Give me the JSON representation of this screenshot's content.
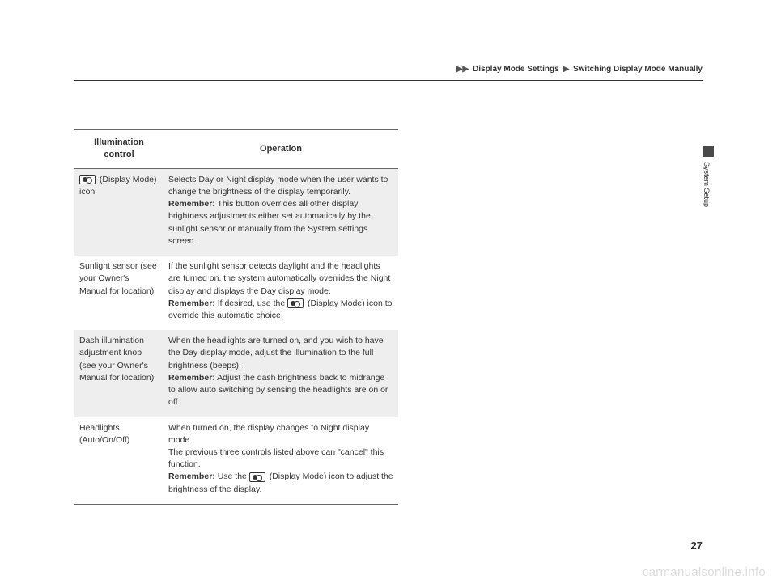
{
  "breadcrumb": {
    "section": "Display Mode Settings",
    "subsection": "Switching Display Mode Manually"
  },
  "sideTab": {
    "label": "System Setup"
  },
  "table": {
    "headers": {
      "col1": "Illumination control",
      "col2": "Operation"
    },
    "rows": [
      {
        "shade": true,
        "c1_prefix_icon": true,
        "c1": " (Display Mode) icon",
        "c2_a": "Selects Day or Night display mode when the user wants to change the brightness of the display temporarily.",
        "c2_bold": "Remember:",
        "c2_b": " This button overrides all other display brightness adjustments either set automatically by the sunlight sensor or manually from the System settings screen."
      },
      {
        "shade": false,
        "c1": "Sunlight sensor (see your Owner's Manual for location)",
        "c2_a": "If the sunlight sensor detects daylight and the headlights are turned on, the system automatically overrides the Night display and displays the Day display mode.",
        "c2_bold": "Remember:",
        "c2_b": " If desired, use the ",
        "c2_icon": true,
        "c2_c": " (Display Mode) icon to override this automatic choice."
      },
      {
        "shade": true,
        "c1": "Dash illumination adjustment knob (see your Owner's Manual for location)",
        "c2_a": "When the headlights are turned on, and you wish to have the Day display mode, adjust the illumination to the full brightness (beeps).",
        "c2_bold": "Remember:",
        "c2_b": " Adjust the dash brightness back to midrange to allow auto switching by sensing the headlights are on or off."
      },
      {
        "shade": false,
        "last": true,
        "c1": "Headlights (Auto/On/Off)",
        "c2_a": "When turned on, the display changes to Night display mode.\nThe previous three controls listed above can \"cancel\" this function.",
        "c2_bold": "Remember:",
        "c2_b": " Use the ",
        "c2_icon": true,
        "c2_c": " (Display Mode) icon to adjust the brightness of the display."
      }
    ]
  },
  "pageNumber": "27",
  "watermark": "carmanualsonline.info"
}
